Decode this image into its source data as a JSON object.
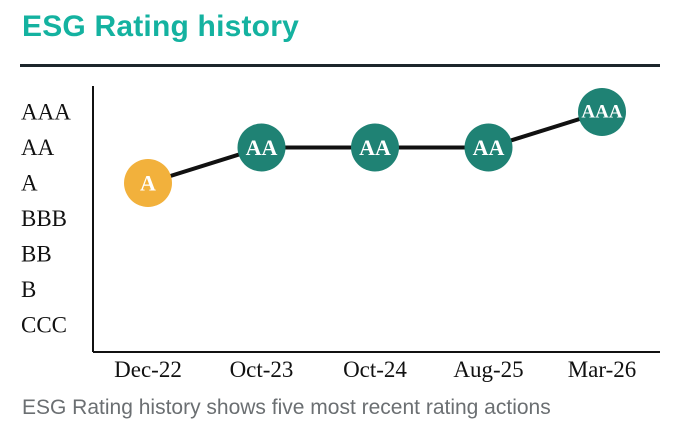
{
  "header": {
    "title": "ESG Rating history"
  },
  "chart_data": {
    "type": "line",
    "title": "ESG Rating history",
    "xlabel": "",
    "ylabel": "",
    "grid": false,
    "legend": false,
    "y_categories": [
      "AAA",
      "AA",
      "A",
      "BBB",
      "BB",
      "B",
      "CCC"
    ],
    "x_categories": [
      "Dec-22",
      "Oct-23",
      "Oct-24",
      "Aug-25",
      "Mar-26"
    ],
    "points": [
      {
        "x": "Dec-22",
        "rating": "A",
        "color": "#F2B13C"
      },
      {
        "x": "Oct-23",
        "rating": "AA",
        "color": "#1F8274"
      },
      {
        "x": "Oct-24",
        "rating": "AA",
        "color": "#1F8274"
      },
      {
        "x": "Aug-25",
        "rating": "AA",
        "color": "#1F8274"
      },
      {
        "x": "Mar-26",
        "rating": "AAA",
        "color": "#1F8274"
      }
    ],
    "line_color": "#111111",
    "axis_color": "#111111",
    "point_label_color": "#FFFFFF"
  },
  "colors": {
    "title": "#14B2A0",
    "divider": "#1D262B",
    "caption": "#6B6F72"
  },
  "footer": {
    "caption": "ESG Rating history shows five most recent rating actions"
  }
}
